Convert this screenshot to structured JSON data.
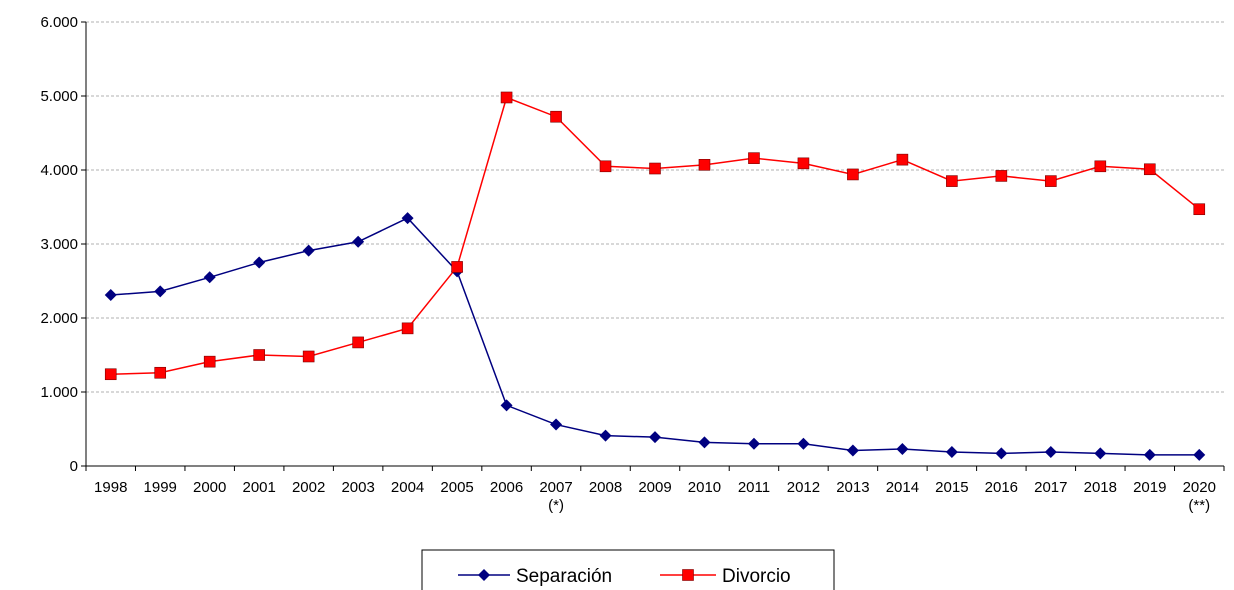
{
  "chart_data": {
    "type": "line",
    "title": "",
    "xlabel": "",
    "ylabel": "",
    "categories": [
      "1998",
      "1999",
      "2000",
      "2001",
      "2002",
      "2003",
      "2004",
      "2005",
      "2006",
      "2007",
      "2008",
      "2009",
      "2010",
      "2011",
      "2012",
      "2013",
      "2014",
      "2015",
      "2016",
      "2017",
      "2018",
      "2019",
      "2020"
    ],
    "category_notes": [
      "",
      "",
      "",
      "",
      "",
      "",
      "",
      "",
      "",
      "(*)",
      "",
      "",
      "",
      "",
      "",
      "",
      "",
      "",
      "",
      "",
      "",
      "",
      "(**)"
    ],
    "ylim": [
      0,
      6000
    ],
    "yticks": [
      0,
      1000,
      2000,
      3000,
      4000,
      5000,
      6000
    ],
    "ytick_labels": [
      "0",
      "1.000",
      "2.000",
      "3.000",
      "4.000",
      "5.000",
      "6.000"
    ],
    "grid": "horizontal dashed",
    "legend_position": "bottom",
    "series": [
      {
        "name": "Separación",
        "color": "#000080",
        "marker": "diamond",
        "values": [
          2310,
          2360,
          2550,
          2750,
          2910,
          3030,
          3350,
          2630,
          820,
          560,
          410,
          390,
          320,
          300,
          300,
          210,
          230,
          190,
          170,
          190,
          170,
          150,
          150
        ]
      },
      {
        "name": "Divorcio",
        "color": "#FF0000",
        "marker": "square",
        "values": [
          1240,
          1260,
          1410,
          1500,
          1480,
          1670,
          1860,
          2690,
          4980,
          4720,
          4050,
          4020,
          4070,
          4160,
          4090,
          3940,
          4140,
          3850,
          3920,
          3850,
          4050,
          4010,
          3470
        ]
      }
    ]
  }
}
